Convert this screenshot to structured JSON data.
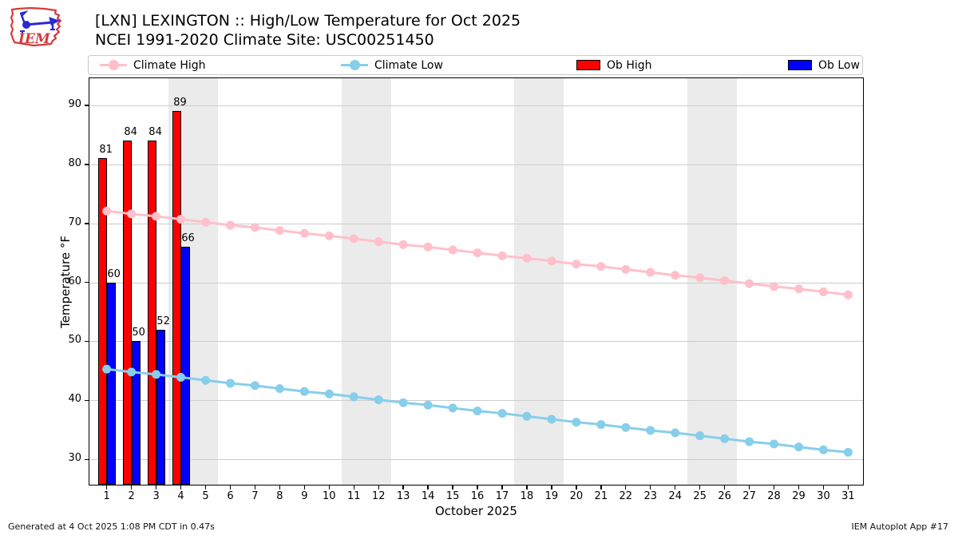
{
  "header": {
    "title_line1": "[LXN] LEXINGTON :: High/Low Temperature for Oct 2025",
    "title_line2": "NCEI 1991-2020 Climate Site: USC00251450",
    "logo_text": "IEM"
  },
  "legend": {
    "items": [
      {
        "label": "Climate High",
        "type": "line",
        "color": "#FFC0CB"
      },
      {
        "label": "Climate Low",
        "type": "line",
        "color": "#87CEEB"
      },
      {
        "label": "Ob High",
        "type": "patch",
        "color": "#FF0000"
      },
      {
        "label": "Ob Low",
        "type": "patch",
        "color": "#0000FF"
      }
    ]
  },
  "chart_data": {
    "type": "bar",
    "title": "[LXN] LEXINGTON :: High/Low Temperature for Oct 2025",
    "subtitle": "NCEI 1991-2020 Climate Site: USC00251450",
    "xlabel": "October 2025",
    "ylabel": "Temperature °F",
    "xlim": [
      0.3,
      31.6
    ],
    "ylim": [
      25.7,
      94.6
    ],
    "yticks": [
      30,
      40,
      50,
      60,
      70,
      80,
      90
    ],
    "xticks": [
      1,
      2,
      3,
      4,
      5,
      6,
      7,
      8,
      9,
      10,
      11,
      12,
      13,
      14,
      15,
      16,
      17,
      18,
      19,
      20,
      21,
      22,
      23,
      24,
      25,
      26,
      27,
      28,
      29,
      30,
      31
    ],
    "grid": "horizontal",
    "grid_color": "#CCCCCC",
    "weekend_bands": [
      [
        3.5,
        5.5
      ],
      [
        10.5,
        12.5
      ],
      [
        17.5,
        19.5
      ],
      [
        24.5,
        26.5
      ]
    ],
    "band_color": "#EBEBEB",
    "x": [
      1,
      2,
      3,
      4,
      5,
      6,
      7,
      8,
      9,
      10,
      11,
      12,
      13,
      14,
      15,
      16,
      17,
      18,
      19,
      20,
      21,
      22,
      23,
      24,
      25,
      26,
      27,
      28,
      29,
      30,
      31
    ],
    "series": [
      {
        "name": "Climate High",
        "type": "line",
        "color": "#FFC0CB",
        "values": [
          72.1,
          71.6,
          71.2,
          70.7,
          70.2,
          69.7,
          69.3,
          68.8,
          68.3,
          67.9,
          67.4,
          66.9,
          66.4,
          66.0,
          65.5,
          65.0,
          64.5,
          64.1,
          63.6,
          63.1,
          62.7,
          62.2,
          61.7,
          61.2,
          60.8,
          60.3,
          59.8,
          59.3,
          58.9,
          58.4,
          57.9
        ]
      },
      {
        "name": "Climate Low",
        "type": "line",
        "color": "#87CEEB",
        "values": [
          45.3,
          44.8,
          44.4,
          43.9,
          43.4,
          42.9,
          42.5,
          42.0,
          41.5,
          41.1,
          40.6,
          40.1,
          39.6,
          39.2,
          38.7,
          38.2,
          37.8,
          37.3,
          36.8,
          36.3,
          35.9,
          35.4,
          34.9,
          34.5,
          34.0,
          33.5,
          33.0,
          32.6,
          32.1,
          31.6,
          31.2
        ]
      },
      {
        "name": "Ob High",
        "type": "bar",
        "side": "left",
        "color": "#FF0000",
        "days": [
          1,
          2,
          3,
          4
        ],
        "values": [
          81,
          84,
          84,
          89
        ]
      },
      {
        "name": "Ob Low",
        "type": "bar",
        "side": "right",
        "color": "#0000FF",
        "days": [
          1,
          2,
          3,
          4
        ],
        "values": [
          60,
          50,
          52,
          66
        ]
      }
    ]
  },
  "footer": {
    "left": "Generated at 4 Oct 2025 1:08 PM CDT in 0.47s",
    "right": "IEM Autoplot App #17"
  }
}
